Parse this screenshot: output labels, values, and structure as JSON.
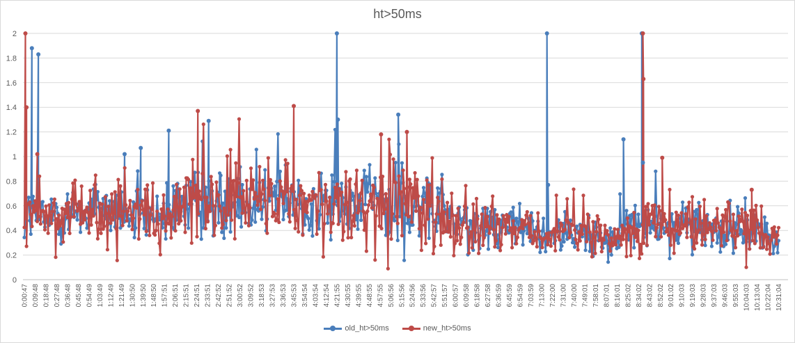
{
  "chart_data": {
    "type": "line",
    "title": "ht>50ms",
    "xlabel": "",
    "ylabel": "",
    "ylim": [
      0,
      2
    ],
    "y_ticks": [
      "0",
      "0.2",
      "0.4",
      "0.6",
      "0.8",
      "1",
      "1.2",
      "1.4",
      "1.6",
      "1.8",
      "2"
    ],
    "x_ticks": [
      "0:00:47",
      "0:09:48",
      "0:18:48",
      "0:27:48",
      "0:36:48",
      "0:45:48",
      "0:54:49",
      "1:03:49",
      "1:12:49",
      "1:21:49",
      "1:30:50",
      "1:39:50",
      "1:48:50",
      "1:57:51",
      "2:06:51",
      "2:15:51",
      "2:24:51",
      "2:33:51",
      "2:42:52",
      "2:51:52",
      "3:00:52",
      "3:09:52",
      "3:18:53",
      "3:27:53",
      "3:36:53",
      "3:45:53",
      "3:54:54",
      "4:03:54",
      "4:12:54",
      "4:21:55",
      "4:30:55",
      "4:39:55",
      "4:48:55",
      "4:57:55",
      "5:06:56",
      "5:15:56",
      "5:24:56",
      "5:33:56",
      "5:42:57",
      "5:51:57",
      "6:00:57",
      "6:09:58",
      "6:18:58",
      "6:27:58",
      "6:36:59",
      "6:45:59",
      "6:54:59",
      "7:03:59",
      "7:13:00",
      "7:22:00",
      "7:31:00",
      "7:40:00",
      "7:49:01",
      "7:58:01",
      "8:07:01",
      "8:16:01",
      "8:25:02",
      "8:34:02",
      "8:43:02",
      "8:52:02",
      "9:01:02",
      "9:10:03",
      "9:19:03",
      "9:28:03",
      "9:37:03",
      "9:46:03",
      "9:55:03",
      "10:04:03",
      "10:13:04",
      "10:22:04",
      "10:31:04"
    ],
    "x_point_count": 700,
    "series": [
      {
        "name": "old_ht>50ms",
        "color": "#4a7ebb",
        "baseline_by_tick": [
          0.55,
          0.52,
          0.5,
          0.52,
          0.55,
          0.55,
          0.57,
          0.58,
          0.57,
          0.55,
          0.52,
          0.52,
          0.5,
          0.5,
          0.55,
          0.62,
          0.62,
          0.62,
          0.63,
          0.65,
          0.66,
          0.65,
          0.65,
          0.65,
          0.66,
          0.65,
          0.63,
          0.6,
          0.6,
          0.62,
          0.62,
          0.63,
          0.64,
          0.65,
          0.65,
          0.6,
          0.62,
          0.6,
          0.55,
          0.52,
          0.46,
          0.44,
          0.43,
          0.43,
          0.43,
          0.42,
          0.4,
          0.38,
          0.38,
          0.4,
          0.42,
          0.42,
          0.4,
          0.38,
          0.3,
          0.32,
          0.45,
          0.45,
          0.5,
          0.46,
          0.46,
          0.45,
          0.44,
          0.42,
          0.42,
          0.42,
          0.4,
          0.4,
          0.38,
          0.36,
          0.36
        ],
        "amplitude_by_tick": [
          0.18,
          0.18,
          0.17,
          0.17,
          0.17,
          0.18,
          0.2,
          0.2,
          0.2,
          0.2,
          0.18,
          0.18,
          0.18,
          0.18,
          0.2,
          0.24,
          0.24,
          0.24,
          0.24,
          0.24,
          0.24,
          0.24,
          0.24,
          0.24,
          0.24,
          0.23,
          0.22,
          0.22,
          0.22,
          0.23,
          0.23,
          0.23,
          0.24,
          0.24,
          0.24,
          0.23,
          0.22,
          0.21,
          0.2,
          0.18,
          0.16,
          0.15,
          0.15,
          0.15,
          0.15,
          0.14,
          0.14,
          0.13,
          0.13,
          0.14,
          0.14,
          0.14,
          0.14,
          0.13,
          0.1,
          0.12,
          0.16,
          0.17,
          0.18,
          0.16,
          0.16,
          0.15,
          0.15,
          0.15,
          0.15,
          0.15,
          0.14,
          0.14,
          0.13,
          0.13,
          0.12
        ],
        "spikes": [
          {
            "x": 0.7,
            "y": 1.88
          },
          {
            "x": 1.3,
            "y": 1.83
          },
          {
            "x": 9.3,
            "y": 1.02
          },
          {
            "x": 10.8,
            "y": 1.07
          },
          {
            "x": 13.4,
            "y": 1.21
          },
          {
            "x": 17.1,
            "y": 1.29
          },
          {
            "x": 29.0,
            "y": 2.0
          },
          {
            "x": 29.1,
            "y": 1.3
          },
          {
            "x": 34.7,
            "y": 1.34
          },
          {
            "x": 48.5,
            "y": 2.0
          },
          {
            "x": 48.6,
            "y": 0.77
          },
          {
            "x": 55.6,
            "y": 1.14
          },
          {
            "x": 57.3,
            "y": 2.0
          },
          {
            "x": 57.4,
            "y": 0.95
          }
        ]
      },
      {
        "name": "new_ht>50ms",
        "color": "#be4b48",
        "baseline_by_tick": [
          0.5,
          0.5,
          0.5,
          0.5,
          0.53,
          0.53,
          0.55,
          0.56,
          0.55,
          0.55,
          0.5,
          0.5,
          0.48,
          0.5,
          0.55,
          0.65,
          0.62,
          0.64,
          0.63,
          0.66,
          0.66,
          0.65,
          0.66,
          0.65,
          0.66,
          0.64,
          0.62,
          0.6,
          0.6,
          0.62,
          0.62,
          0.63,
          0.64,
          0.64,
          0.64,
          0.6,
          0.62,
          0.58,
          0.52,
          0.5,
          0.44,
          0.43,
          0.42,
          0.42,
          0.42,
          0.41,
          0.4,
          0.37,
          0.36,
          0.4,
          0.42,
          0.42,
          0.4,
          0.37,
          0.3,
          0.3,
          0.44,
          0.44,
          0.48,
          0.44,
          0.44,
          0.44,
          0.43,
          0.42,
          0.42,
          0.42,
          0.4,
          0.39,
          0.37,
          0.35,
          0.35
        ],
        "amplitude_by_tick": [
          0.19,
          0.19,
          0.18,
          0.18,
          0.18,
          0.19,
          0.21,
          0.21,
          0.21,
          0.21,
          0.19,
          0.19,
          0.19,
          0.19,
          0.21,
          0.25,
          0.25,
          0.25,
          0.25,
          0.25,
          0.25,
          0.25,
          0.25,
          0.25,
          0.25,
          0.24,
          0.23,
          0.23,
          0.23,
          0.24,
          0.24,
          0.24,
          0.25,
          0.25,
          0.25,
          0.24,
          0.23,
          0.22,
          0.21,
          0.19,
          0.17,
          0.16,
          0.16,
          0.16,
          0.16,
          0.15,
          0.15,
          0.14,
          0.14,
          0.15,
          0.15,
          0.15,
          0.15,
          0.14,
          0.11,
          0.13,
          0.17,
          0.18,
          0.19,
          0.17,
          0.17,
          0.16,
          0.16,
          0.16,
          0.16,
          0.16,
          0.15,
          0.15,
          0.14,
          0.14,
          0.13
        ],
        "spikes": [
          {
            "x": 0.1,
            "y": 2.0
          },
          {
            "x": 0.2,
            "y": 1.4
          },
          {
            "x": 1.2,
            "y": 1.02
          },
          {
            "x": 16.1,
            "y": 1.37
          },
          {
            "x": 25.0,
            "y": 1.41
          },
          {
            "x": 33.1,
            "y": 1.18
          },
          {
            "x": 35.5,
            "y": 1.2
          },
          {
            "x": 57.4,
            "y": 2.0
          },
          {
            "x": 57.45,
            "y": 1.63
          },
          {
            "x": 59.2,
            "y": 0.99
          },
          {
            "x": 67.5,
            "y": 0.73
          }
        ]
      }
    ]
  }
}
